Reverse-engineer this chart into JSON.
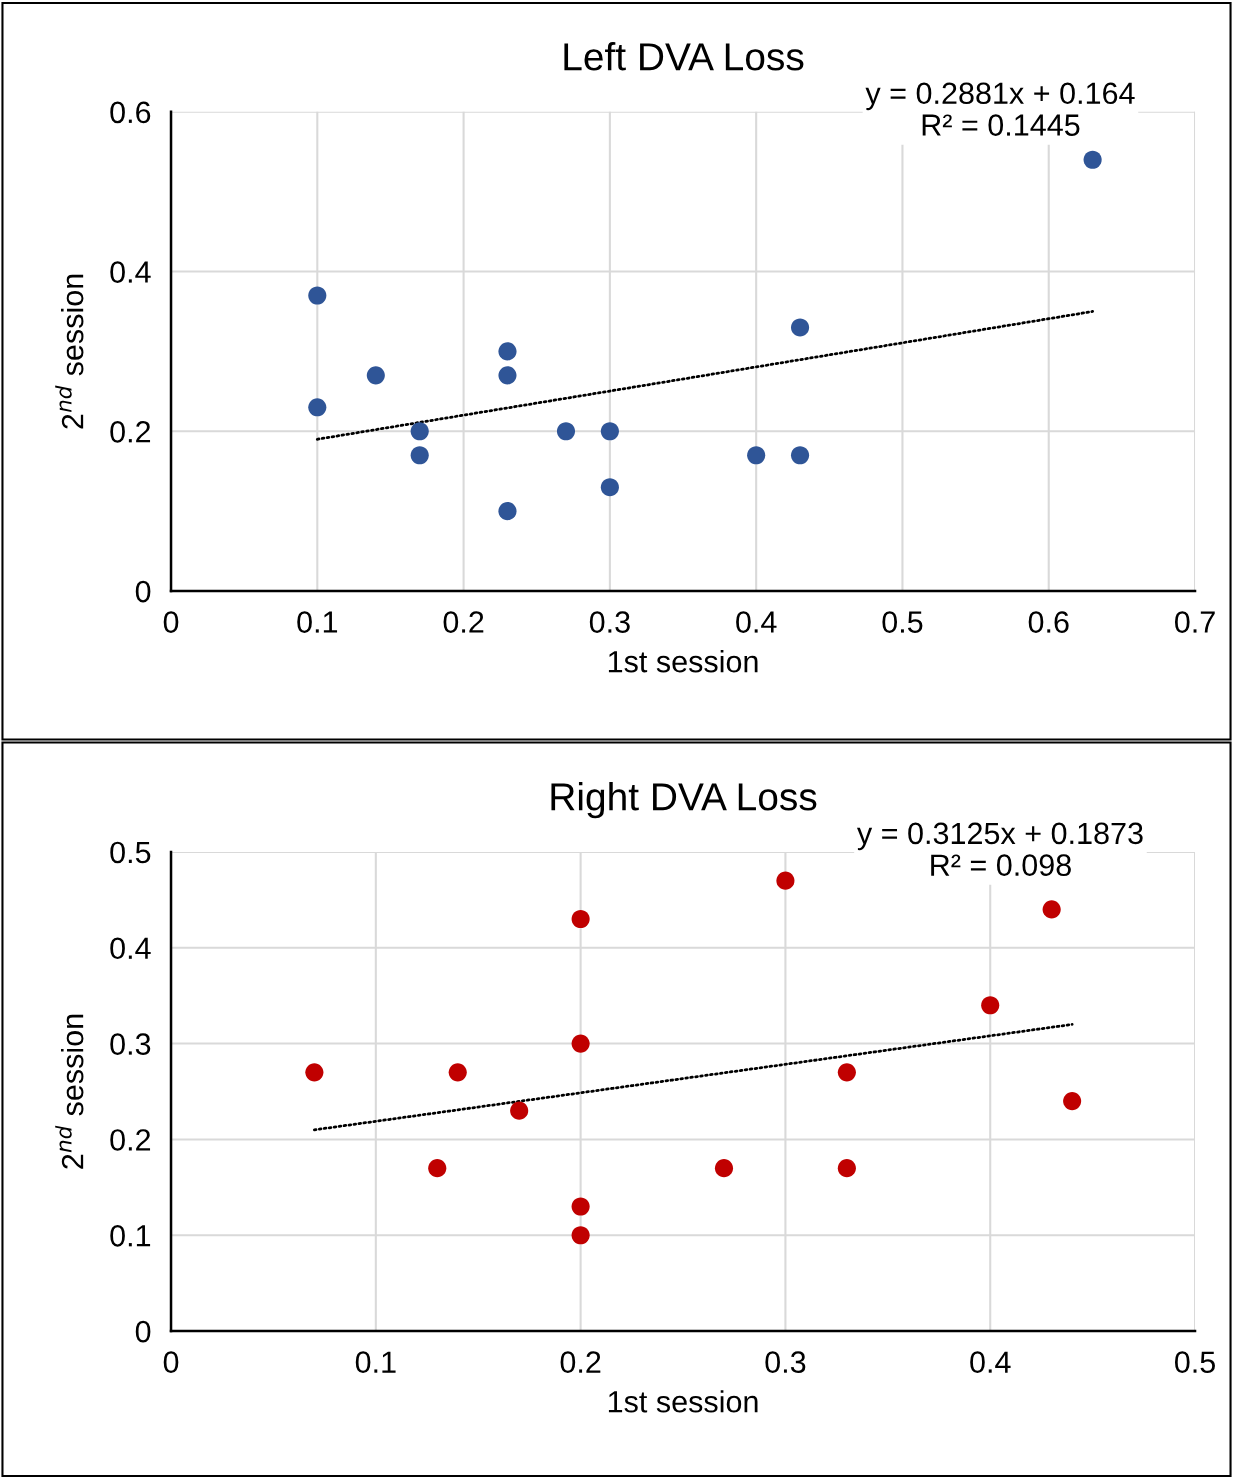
{
  "chart_data": [
    {
      "type": "scatter",
      "title": "Left DVA Loss",
      "xlabel": "1st session",
      "ylabel": "2$^{nd}$ session",
      "xlim": [
        0,
        0.7
      ],
      "ylim": [
        0,
        0.6
      ],
      "xticks": [
        0,
        0.1,
        0.2,
        0.3,
        0.4,
        0.5,
        0.6,
        0.7
      ],
      "yticks": [
        0,
        0.2,
        0.4,
        0.6
      ],
      "grid": true,
      "marker": "circle",
      "legend": false,
      "annotations": [
        "y = 0.2881x + 0.164\nR² = 0.1445"
      ],
      "series": [
        {
          "color": "#2f5597",
          "x": [
            0.1,
            0.1,
            0.14,
            0.17,
            0.17,
            0.23,
            0.23,
            0.23,
            0.27,
            0.3,
            0.3,
            0.4,
            0.43,
            0.43,
            0.63
          ],
          "values": [
            0.37,
            0.23,
            0.27,
            0.2,
            0.17,
            0.3,
            0.27,
            0.1,
            0.2,
            0.2,
            0.13,
            0.17,
            0.33,
            0.17,
            0.54
          ]
        },
        {
          "type": "line",
          "color": "#000000",
          "line_style": "dotted",
          "marker": "none",
          "x": [
            0.1,
            0.63
          ],
          "values": [
            0.19,
            0.35
          ]
        }
      ]
    },
    {
      "type": "scatter",
      "title": "Right DVA Loss",
      "xlabel": "1st session",
      "ylabel": "2$^{nd}$ session",
      "xlim": [
        0,
        0.5
      ],
      "ylim": [
        0,
        0.5
      ],
      "xticks": [
        0,
        0.1,
        0.2,
        0.3,
        0.4,
        0.5
      ],
      "yticks": [
        0,
        0.1,
        0.2,
        0.3,
        0.4,
        0.5
      ],
      "grid": true,
      "marker": "circle",
      "legend": false,
      "annotations": [
        "y = 0.3125x + 0.1873\nR² = 0.098"
      ],
      "series": [
        {
          "color": "#c00000",
          "x": [
            0.07,
            0.13,
            0.14,
            0.17,
            0.2,
            0.2,
            0.2,
            0.2,
            0.27,
            0.3,
            0.33,
            0.33,
            0.4,
            0.43,
            0.44
          ],
          "values": [
            0.27,
            0.17,
            0.27,
            0.23,
            0.43,
            0.3,
            0.13,
            0.1,
            0.17,
            0.47,
            0.27,
            0.17,
            0.34,
            0.44,
            0.24
          ]
        },
        {
          "type": "line",
          "color": "#000000",
          "line_style": "dotted",
          "marker": "none",
          "x": [
            0.07,
            0.44
          ],
          "values": [
            0.21,
            0.32
          ]
        }
      ]
    }
  ]
}
